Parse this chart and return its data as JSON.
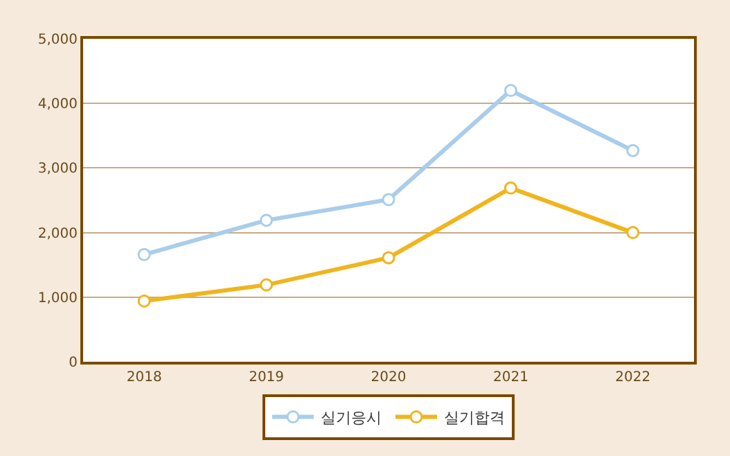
{
  "chart_data": {
    "type": "line",
    "categories": [
      "2018",
      "2019",
      "2020",
      "2021",
      "2022"
    ],
    "series": [
      {
        "name": "실기응시",
        "color": "#a9cdea",
        "values": [
          1660,
          2190,
          2510,
          4200,
          3270
        ]
      },
      {
        "name": "실기합격",
        "color": "#f0b51e",
        "values": [
          940,
          1190,
          1610,
          2690,
          2000
        ]
      }
    ],
    "ylim": [
      0,
      5000
    ],
    "yticks": [
      {
        "value": 0,
        "label": "0"
      },
      {
        "value": 1000,
        "label": "1,000"
      },
      {
        "value": 2000,
        "label": "2,000"
      },
      {
        "value": 3000,
        "label": "3,000"
      },
      {
        "value": 4000,
        "label": "4,000"
      },
      {
        "value": 5000,
        "label": "5,000"
      }
    ],
    "grid": "y",
    "legend": "bottom",
    "marker": "circle",
    "line_style": "solid"
  }
}
